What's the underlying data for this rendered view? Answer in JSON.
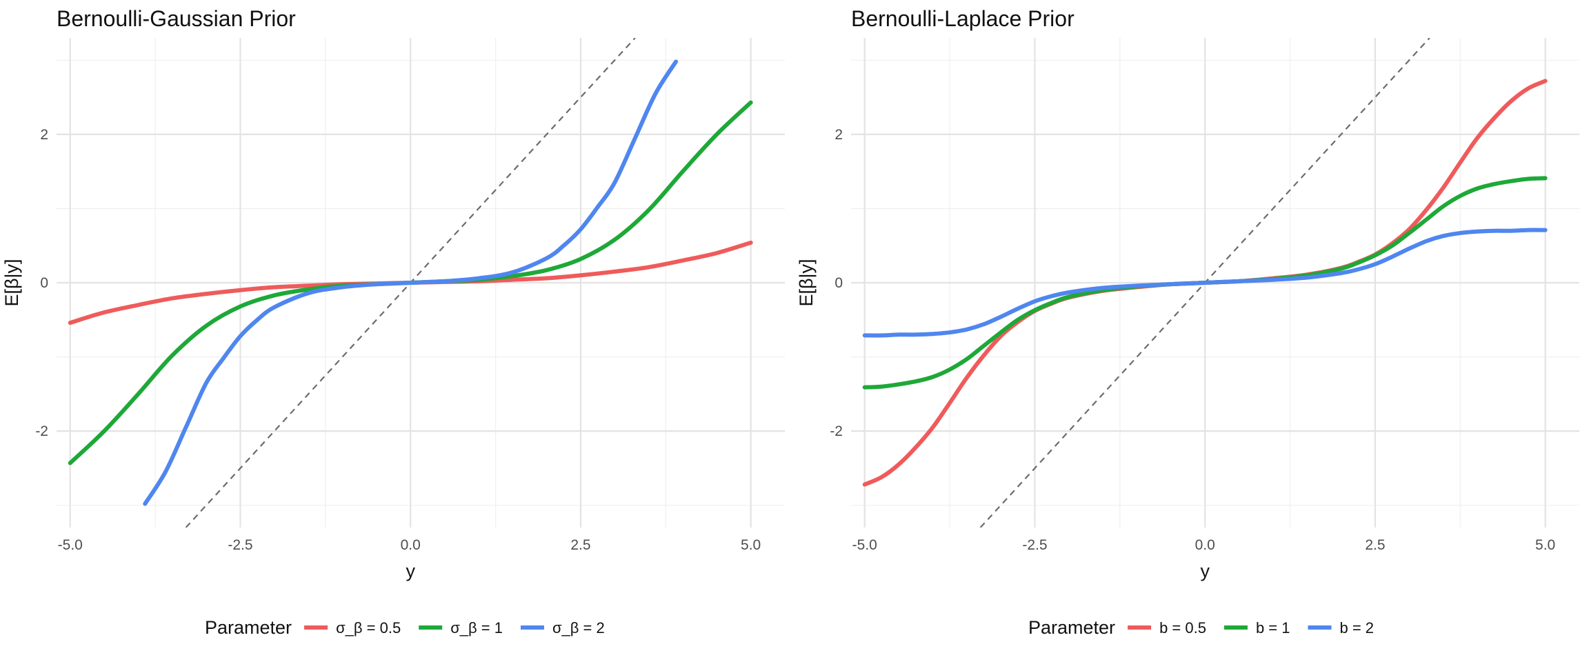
{
  "chart_data": [
    {
      "type": "line",
      "title": "Bernoulli-Gaussian Prior",
      "xlabel": "y",
      "ylabel": "E[β|y]",
      "xlim": [
        -5.2,
        5.5
      ],
      "ylim": [
        -3.3,
        3.3
      ],
      "x_ticks": [
        -5.0,
        -2.5,
        0.0,
        2.5,
        5.0
      ],
      "x_tick_labels": [
        "-5.0",
        "-2.5",
        "0.0",
        "2.5",
        "5.0"
      ],
      "y_ticks": [
        -2,
        0,
        2
      ],
      "y_tick_labels": [
        "-2",
        "0",
        "2"
      ],
      "grid": true,
      "legend": {
        "position": "bottom",
        "title": "Parameter"
      },
      "reference_line": {
        "style": "dashed",
        "color": "#6b6b6b",
        "equation": "y = x"
      },
      "series": [
        {
          "name": "σ_β = 0.5",
          "color": "#EF5B5B",
          "x": [
            -5.0,
            -4.5,
            -4.0,
            -3.5,
            -3.0,
            -2.5,
            -2.0,
            -1.5,
            -1.0,
            -0.5,
            0.0,
            0.5,
            1.0,
            1.5,
            2.0,
            2.5,
            3.0,
            3.5,
            4.0,
            4.5,
            5.0
          ],
          "y": [
            -0.54,
            -0.4,
            -0.3,
            -0.21,
            -0.15,
            -0.1,
            -0.06,
            -0.04,
            -0.02,
            -0.01,
            0.0,
            0.01,
            0.02,
            0.04,
            0.06,
            0.1,
            0.15,
            0.21,
            0.3,
            0.4,
            0.54
          ]
        },
        {
          "name": "σ_β = 1",
          "color": "#1EA838",
          "x": [
            -5.0,
            -4.5,
            -4.0,
            -3.5,
            -3.0,
            -2.5,
            -2.0,
            -1.5,
            -1.0,
            -0.5,
            0.0,
            0.5,
            1.0,
            1.5,
            2.0,
            2.5,
            3.0,
            3.5,
            4.0,
            4.5,
            5.0
          ],
          "y": [
            -2.43,
            -2.0,
            -1.5,
            -0.98,
            -0.58,
            -0.32,
            -0.17,
            -0.09,
            -0.04,
            -0.02,
            0.0,
            0.02,
            0.04,
            0.09,
            0.17,
            0.32,
            0.58,
            0.98,
            1.5,
            2.0,
            2.43
          ]
        },
        {
          "name": "σ_β = 2",
          "color": "#4F86EF",
          "x": [
            -3.9,
            -3.6,
            -3.3,
            -3.0,
            -2.75,
            -2.5,
            -2.25,
            -2.0,
            -1.5,
            -1.0,
            -0.5,
            0.0,
            0.5,
            1.0,
            1.5,
            2.0,
            2.25,
            2.5,
            2.75,
            3.0,
            3.3,
            3.6,
            3.9
          ],
          "y": [
            -2.98,
            -2.55,
            -1.95,
            -1.35,
            -1.02,
            -0.72,
            -0.5,
            -0.33,
            -0.14,
            -0.06,
            -0.02,
            0.0,
            0.02,
            0.06,
            0.14,
            0.33,
            0.5,
            0.72,
            1.02,
            1.35,
            1.95,
            2.55,
            2.98
          ]
        }
      ]
    },
    {
      "type": "line",
      "title": "Bernoulli-Laplace Prior",
      "xlabel": "y",
      "ylabel": "E[β|y]",
      "xlim": [
        -5.2,
        5.5
      ],
      "ylim": [
        -3.3,
        3.3
      ],
      "x_ticks": [
        -5.0,
        -2.5,
        0.0,
        2.5,
        5.0
      ],
      "x_tick_labels": [
        "-5.0",
        "-2.5",
        "0.0",
        "2.5",
        "5.0"
      ],
      "y_ticks": [
        -2,
        0,
        2
      ],
      "y_tick_labels": [
        "-2",
        "0",
        "2"
      ],
      "grid": true,
      "legend": {
        "position": "bottom",
        "title": "Parameter"
      },
      "reference_line": {
        "style": "dashed",
        "color": "#6b6b6b",
        "equation": "y = x"
      },
      "series": [
        {
          "name": "b = 0.5",
          "color": "#EF5B5B",
          "x": [
            -5.0,
            -4.75,
            -4.5,
            -4.25,
            -4.0,
            -3.75,
            -3.5,
            -3.25,
            -3.0,
            -2.75,
            -2.5,
            -2.25,
            -2.0,
            -1.5,
            -1.0,
            -0.5,
            0.0,
            0.5,
            1.0,
            1.5,
            2.0,
            2.25,
            2.5,
            2.75,
            3.0,
            3.25,
            3.5,
            3.75,
            4.0,
            4.25,
            4.5,
            4.75,
            5.0
          ],
          "y": [
            -2.72,
            -2.62,
            -2.45,
            -2.22,
            -1.95,
            -1.62,
            -1.28,
            -0.98,
            -0.72,
            -0.53,
            -0.38,
            -0.28,
            -0.2,
            -0.11,
            -0.06,
            -0.02,
            0.0,
            0.02,
            0.06,
            0.11,
            0.2,
            0.28,
            0.38,
            0.53,
            0.72,
            0.98,
            1.28,
            1.62,
            1.95,
            2.22,
            2.45,
            2.62,
            2.72
          ]
        },
        {
          "name": "b = 1",
          "color": "#1EA838",
          "x": [
            -5.0,
            -4.75,
            -4.5,
            -4.25,
            -4.0,
            -3.75,
            -3.5,
            -3.25,
            -3.0,
            -2.75,
            -2.5,
            -2.25,
            -2.0,
            -1.5,
            -1.0,
            -0.5,
            0.0,
            0.5,
            1.0,
            1.5,
            2.0,
            2.25,
            2.5,
            2.75,
            3.0,
            3.25,
            3.5,
            3.75,
            4.0,
            4.25,
            4.5,
            4.75,
            5.0
          ],
          "y": [
            -1.41,
            -1.4,
            -1.37,
            -1.33,
            -1.27,
            -1.17,
            -1.03,
            -0.85,
            -0.67,
            -0.5,
            -0.37,
            -0.27,
            -0.19,
            -0.1,
            -0.05,
            -0.02,
            0.0,
            0.02,
            0.05,
            0.1,
            0.19,
            0.27,
            0.37,
            0.5,
            0.67,
            0.85,
            1.03,
            1.17,
            1.27,
            1.33,
            1.37,
            1.4,
            1.41
          ]
        },
        {
          "name": "b = 2",
          "color": "#4F86EF",
          "x": [
            -5.0,
            -4.75,
            -4.5,
            -4.25,
            -4.0,
            -3.75,
            -3.5,
            -3.25,
            -3.0,
            -2.75,
            -2.5,
            -2.25,
            -2.0,
            -1.5,
            -1.0,
            -0.5,
            0.0,
            0.5,
            1.0,
            1.5,
            2.0,
            2.25,
            2.5,
            2.75,
            3.0,
            3.25,
            3.5,
            3.75,
            4.0,
            4.25,
            4.5,
            4.75,
            5.0
          ],
          "y": [
            -0.71,
            -0.71,
            -0.7,
            -0.7,
            -0.69,
            -0.67,
            -0.63,
            -0.56,
            -0.46,
            -0.35,
            -0.25,
            -0.18,
            -0.13,
            -0.07,
            -0.04,
            -0.02,
            0.0,
            0.02,
            0.04,
            0.07,
            0.13,
            0.18,
            0.25,
            0.35,
            0.46,
            0.56,
            0.63,
            0.67,
            0.69,
            0.7,
            0.7,
            0.71,
            0.71
          ]
        }
      ]
    }
  ]
}
